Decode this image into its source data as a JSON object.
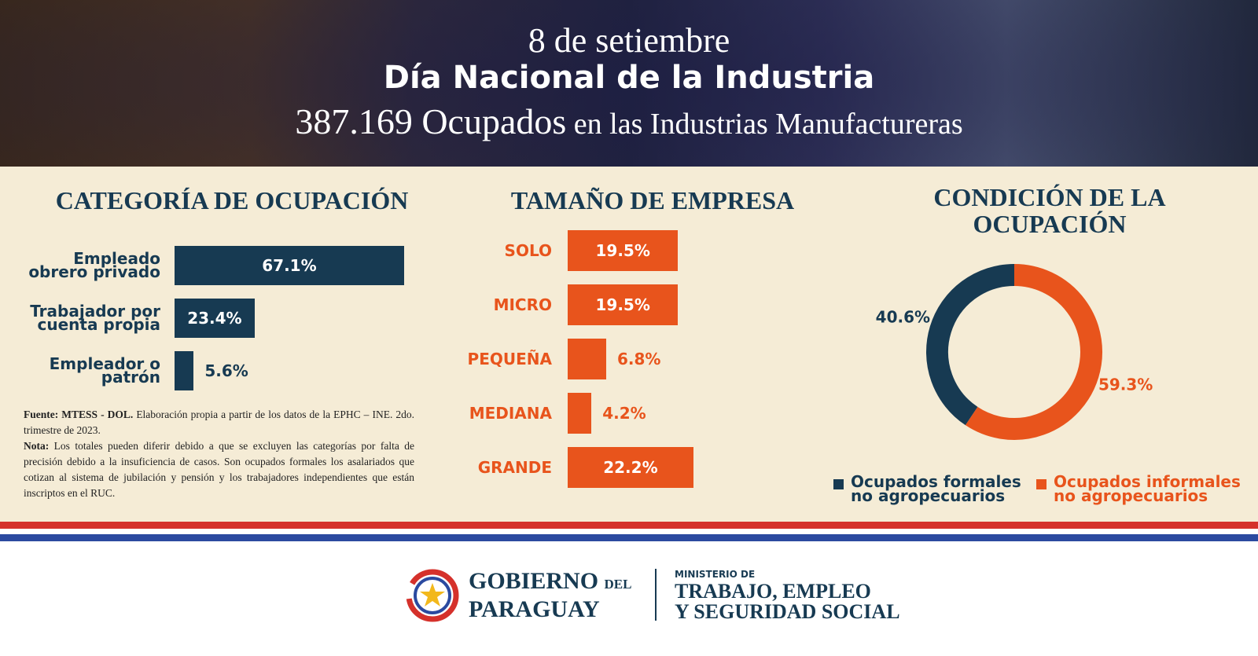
{
  "header": {
    "date": "8 de setiembre",
    "title": "Día Nacional de la Industria",
    "subtitle_strong": "387.169 Ocupados",
    "subtitle_rest": "en las Industrias Manufactureras"
  },
  "chart_data": [
    {
      "type": "hbar",
      "title": "CATEGORÍA DE OCUPACIÓN",
      "categories": [
        "Empleado obrero privado",
        "Trabajador por cuenta propia",
        "Empleador o patrón"
      ],
      "values": [
        67.1,
        23.4,
        5.6
      ],
      "value_labels": [
        "67.1%",
        "23.4%",
        "5.6%"
      ],
      "color": "#173a52",
      "label_color": "#173a52"
    },
    {
      "type": "hbar",
      "title": "TAMAÑO DE EMPRESA",
      "categories": [
        "SOLO",
        "MICRO",
        "PEQUEÑA",
        "MEDIANA",
        "GRANDE"
      ],
      "values": [
        19.5,
        19.5,
        6.8,
        4.2,
        22.2
      ],
      "value_labels": [
        "19.5%",
        "19.5%",
        "6.8%",
        "4.2%",
        "22.2%"
      ],
      "color": "#e8541c",
      "label_color": "#e8541c"
    },
    {
      "type": "donut",
      "title": "CONDICIÓN DE LA OCUPACIÓN",
      "categories": [
        "Ocupados formales no agropecuarios",
        "Ocupados informales no agropecuarios"
      ],
      "values": [
        40.6,
        59.3
      ],
      "value_labels": [
        "40.6%",
        "59.3%"
      ],
      "colors": [
        "#173a52",
        "#e8541c"
      ]
    }
  ],
  "note": {
    "source_label": "Fuente: MTESS - DOL.",
    "source_text": "Elaboración propia a partir de los datos de la EPHC – INE. 2do. trimestre de 2023.",
    "nota_label": "Nota:",
    "nota_text": "Los totales pueden diferir debido a que se excluyen las categorías por falta de precisión debido a la insuficiencia de casos. Son ocupados formales los asalariados que cotizan al sistema de jubilación y pensión y los trabajadores independientes que están inscriptos en el RUC."
  },
  "footer": {
    "gov_1": "GOBIERNO",
    "gov_del": "DEL",
    "gov_2": "PARAGUAY",
    "min_small": "MINISTERIO DE",
    "min_1": "TRABAJO, EMPLEO",
    "min_2": "Y SEGURIDAD SOCIAL"
  }
}
